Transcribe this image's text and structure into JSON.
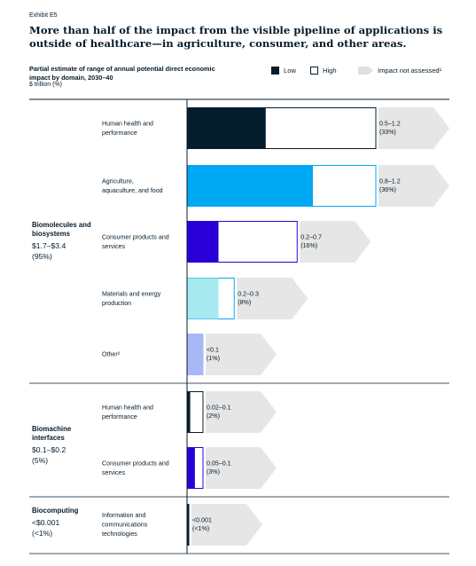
{
  "exhibit": "Exhibit E5",
  "title": "More than half of the impact from the visible pipeline of applications is outside of healthcare—in agriculture, consumer, and other areas.",
  "legend": {
    "low": "Low",
    "high": "High",
    "not_assessed": "Impact not assessed¹"
  },
  "colors": {
    "dark_navy": "#051c2c",
    "cyan": "#00a9f4",
    "indigo": "#2b00d8",
    "light_cyan": "#a6e9ef",
    "periwinkle": "#a8b8f6",
    "chevron_gray": "#e6e6e6"
  },
  "chart_data": {
    "type": "bar",
    "orientation": "horizontal-range",
    "subtitle": "Partial estimate of range of annual potential direct economic impact by domain, 2030–40",
    "units": "$ trillion (%)",
    "xlim": [
      0,
      1.2
    ],
    "groups": [
      {
        "name": "Biomolecules and biosystems",
        "range_label": "$1.7–$3.4",
        "share_label": "(95%)",
        "items": [
          {
            "category": "Human health and performance",
            "low": 0.5,
            "high": 1.2,
            "value_label": "0.5–1.2",
            "share_label": "(33%)",
            "color": "#051c2c"
          },
          {
            "category": "Agriculture, aquaculture, and food",
            "low": 0.8,
            "high": 1.2,
            "value_label": "0.8–1.2",
            "share_label": "(36%)",
            "color": "#00a9f4"
          },
          {
            "category": "Consumer products and services",
            "low": 0.2,
            "high": 0.7,
            "value_label": "0.2–0.7",
            "share_label": "(16%)",
            "color": "#2b00d8"
          },
          {
            "category": "Materials and energy production",
            "low": 0.2,
            "high": 0.3,
            "value_label": "0.2–0.3",
            "share_label": "(8%)",
            "color": "#a6e9ef"
          },
          {
            "category": "Other²",
            "low": 0.05,
            "high": 0.05,
            "value_label": "<0.1",
            "share_label": "(1%)",
            "color": "#a8b8f6"
          }
        ]
      },
      {
        "name": "Biomachine interfaces",
        "range_label": "$0.1–$0.2",
        "share_label": "(5%)",
        "items": [
          {
            "category": "Human health and performance",
            "low": 0.02,
            "high": 0.1,
            "value_label": "0.02–0.1",
            "share_label": "(2%)",
            "color": "#051c2c"
          },
          {
            "category": "Consumer products and services",
            "low": 0.05,
            "high": 0.1,
            "value_label": "0.05–0.1",
            "share_label": "(3%)",
            "color": "#2b00d8"
          }
        ]
      },
      {
        "name": "Biocomputing",
        "range_label": "<$0.001",
        "share_label": "(<1%)",
        "items": [
          {
            "category": "Information and communications technologies",
            "low": 0,
            "high": 0.001,
            "value_label": "<0.001",
            "share_label": "(<1%)",
            "color": "#051c2c"
          }
        ]
      }
    ]
  }
}
